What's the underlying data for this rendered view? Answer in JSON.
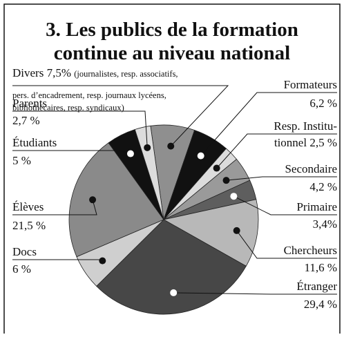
{
  "chart_data": {
    "type": "pie",
    "title": [
      "3. Les publics de la formation",
      "continue au niveau national"
    ],
    "categories": [
      "Divers",
      "Formateurs",
      "Resp. Institu-tionnel",
      "Secondaire",
      "Primaire",
      "Chercheurs",
      "Étranger",
      "Docs",
      "Élèves",
      "Étudiants",
      "Parents"
    ],
    "values": [
      7.5,
      6.2,
      2.5,
      4.2,
      3.4,
      11.6,
      29.4,
      6,
      21.5,
      5,
      2.7
    ],
    "value_labels": [
      "7,5%",
      "6,2 %",
      "2,5 %",
      "4,2 %",
      "3,4%",
      "11,6 %",
      "29,4 %",
      "6 %",
      "21,5 %",
      "5 %",
      "2,7 %"
    ],
    "colors": [
      "#8f8f8f",
      "#111111",
      "#dcdcdc",
      "#9a9a9a",
      "#5e5e5e",
      "#b8b8b8",
      "#474747",
      "#cfcfcf",
      "#8a8a8a",
      "#111111",
      "#dcdcdc"
    ],
    "annotation": [
      "(journalistes, resp. associatifs,",
      "pers. d’encadrement, resp. journaux lycéens,",
      "bibliothécaires, resp. syndicaux)"
    ]
  }
}
